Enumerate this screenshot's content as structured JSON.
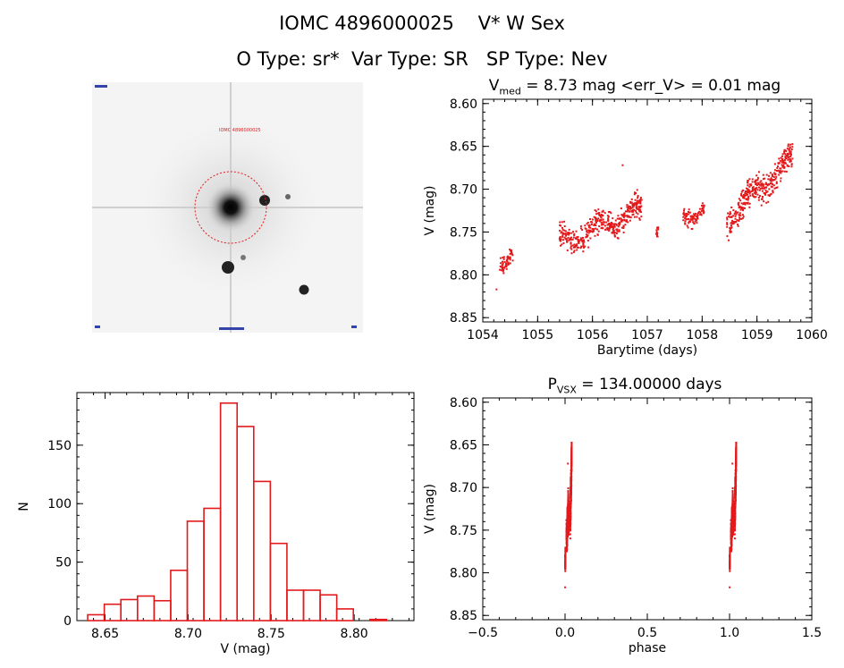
{
  "header": {
    "title": "IOMC 4896000025    V* W Sex",
    "subtitle": "O Type: sr*  Var Type: SR   SP Type: Nev"
  },
  "colors": {
    "data": "#e31a1c",
    "axis": "#000000"
  },
  "thumbnail": {
    "marker_label": "IOMC 4896000025"
  },
  "chart_data": [
    {
      "id": "lightcurve",
      "type": "scatter",
      "title_parts": {
        "v": "V",
        "sub": "med",
        "rest": " = 8.73 mag <err_V> = 0.01 mag"
      },
      "xlabel": "Barytime (days)",
      "ylabel": "V (mag)",
      "xlim": [
        1054,
        1060
      ],
      "ylim": [
        8.855,
        8.595
      ],
      "xticks": [
        1054,
        1055,
        1056,
        1057,
        1058,
        1059,
        1060
      ],
      "yticks": [
        8.6,
        8.65,
        8.7,
        8.75,
        8.8,
        8.85
      ],
      "xtick_labels": [
        "1054",
        "1055",
        "1056",
        "1057",
        "1058",
        "1059",
        "1060"
      ],
      "ytick_labels": [
        "8.60",
        "8.65",
        "8.70",
        "8.75",
        "8.80",
        "8.85"
      ],
      "clusters": [
        {
          "x0": 1054.3,
          "x1": 1054.55,
          "y_start": 8.78,
          "y_end": 8.778,
          "spread": 0.03,
          "n": 60
        },
        {
          "x0": 1055.4,
          "x1": 1056.9,
          "y_start": 8.762,
          "y_end": 8.725,
          "spread": 0.045,
          "n": 420
        },
        {
          "x0": 1057.15,
          "x1": 1057.2,
          "y_start": 8.742,
          "y_end": 8.74,
          "spread": 0.02,
          "n": 15
        },
        {
          "x0": 1057.65,
          "x1": 1058.05,
          "y_start": 8.73,
          "y_end": 8.722,
          "spread": 0.03,
          "n": 90
        },
        {
          "x0": 1058.45,
          "x1": 1059.65,
          "y_start": 8.735,
          "y_end": 8.665,
          "spread": 0.05,
          "n": 380
        }
      ],
      "outliers": [
        {
          "x": 1054.25,
          "y": 8.817
        },
        {
          "x": 1056.55,
          "y": 8.672
        }
      ]
    },
    {
      "id": "histogram",
      "type": "bar",
      "xlabel": "V (mag)",
      "ylabel": "N",
      "xlim": [
        8.633,
        8.836
      ],
      "ylim": [
        0,
        195
      ],
      "xticks": [
        8.65,
        8.7,
        8.75,
        8.8
      ],
      "yticks": [
        0,
        50,
        100,
        150
      ],
      "xtick_labels": [
        "8.65",
        "8.70",
        "8.75",
        "8.80"
      ],
      "ytick_labels": [
        "0",
        "50",
        "100",
        "150"
      ],
      "bin_width": 0.01,
      "bins": [
        8.6395,
        8.6495,
        8.6595,
        8.6695,
        8.6795,
        8.6895,
        8.6995,
        8.7095,
        8.7195,
        8.7295,
        8.7395,
        8.7495,
        8.7595,
        8.7695,
        8.7795,
        8.7895,
        8.7995,
        8.8095
      ],
      "values": [
        5,
        14,
        18,
        21,
        17,
        43,
        85,
        96,
        186,
        166,
        119,
        66,
        26,
        26,
        22,
        10,
        0,
        1
      ]
    },
    {
      "id": "phased",
      "type": "scatter",
      "title_parts": {
        "p": "P",
        "sub": "VSX",
        "rest": " = 134.00000 days"
      },
      "xlabel": "phase",
      "ylabel": "V (mag)",
      "xlim": [
        -0.5,
        1.5
      ],
      "ylim": [
        8.855,
        8.595
      ],
      "xticks": [
        -0.5,
        0.0,
        0.5,
        1.0,
        1.5
      ],
      "yticks": [
        8.6,
        8.65,
        8.7,
        8.75,
        8.8,
        8.85
      ],
      "xtick_labels": [
        "−0.5",
        "0.0",
        "0.5",
        "1.0",
        "1.5"
      ],
      "ytick_labels": [
        "8.60",
        "8.65",
        "8.70",
        "8.75",
        "8.80",
        "8.85"
      ],
      "period_days": 134.0,
      "epoch": 1054.2,
      "repeat_offset": 1.0
    }
  ]
}
